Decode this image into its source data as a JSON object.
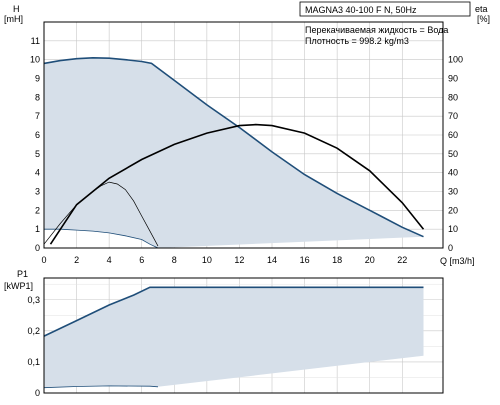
{
  "chart_data": [
    {
      "type": "line",
      "title": "MAGNA3 40-100 F N, 50Hz",
      "annotations": [
        "Перекачиваемая жидкость = Вода",
        "Плотность = 998.2 kg/m3"
      ],
      "ylabel": [
        "H",
        "[mH]"
      ],
      "y2label": [
        "eta",
        "[%]"
      ],
      "xlabel": "Q [m3/h]",
      "xlim": [
        0,
        24.5
      ],
      "ylim": [
        0,
        12
      ],
      "y2lim": [
        0,
        120
      ],
      "xticks": [
        0,
        2,
        4,
        6,
        8,
        10,
        12,
        14,
        16,
        18,
        20,
        22
      ],
      "xtick_labels": [
        "0",
        "2",
        "4",
        "6",
        "8",
        "10",
        "12",
        "14",
        "16",
        "18",
        "20",
        "22"
      ],
      "yticks": [
        0,
        1,
        2,
        3,
        4,
        5,
        6,
        7,
        8,
        9,
        10,
        11
      ],
      "ytick_labels": [
        "0",
        "1",
        "2",
        "3",
        "4",
        "5",
        "6",
        "7",
        "8",
        "9",
        "10",
        "11"
      ],
      "y2ticks": [
        0,
        10,
        20,
        30,
        40,
        50,
        60,
        70,
        80,
        90,
        100
      ],
      "y2tick_labels": [
        "0",
        "10",
        "20",
        "30",
        "40",
        "50",
        "60",
        "70",
        "80",
        "90",
        "100"
      ],
      "grid": true,
      "colors": {
        "area": "#d6dfe9",
        "max_curve": "#1f4e79",
        "eta": "#000000"
      },
      "series": [
        {
          "role": "max-curve",
          "axis": "H",
          "x": [
            0,
            1,
            2,
            3,
            4,
            5,
            6,
            6.6,
            8,
            10,
            12,
            14,
            16,
            18,
            20,
            22,
            23.3
          ],
          "y": [
            9.8,
            9.95,
            10.05,
            10.1,
            10.08,
            10.0,
            9.9,
            9.8,
            8.9,
            7.6,
            6.4,
            5.1,
            3.9,
            2.9,
            2.0,
            1.1,
            0.6
          ]
        },
        {
          "role": "min-curve",
          "axis": "H",
          "x": [
            0,
            1,
            2,
            3,
            4,
            5,
            6,
            6.5,
            7.0
          ],
          "y": [
            1.0,
            1.0,
            0.95,
            0.9,
            0.8,
            0.65,
            0.45,
            0.2,
            0.0
          ]
        },
        {
          "role": "eta-max",
          "axis": "eta",
          "x": [
            0.4,
            2,
            4,
            6,
            8,
            10,
            12,
            13,
            14,
            16,
            18,
            20,
            22,
            23.3
          ],
          "y": [
            2,
            23,
            37,
            47,
            55,
            61,
            65,
            65.5,
            65,
            61,
            53,
            41,
            24,
            10
          ]
        },
        {
          "role": "eta-min",
          "axis": "eta",
          "x": [
            0,
            1,
            2,
            3,
            3.5,
            4,
            4.5,
            5,
            5.5,
            6,
            6.5,
            7.0
          ],
          "y": [
            2,
            13,
            23,
            30,
            33,
            35,
            34,
            31,
            25,
            17,
            9,
            1
          ]
        }
      ]
    },
    {
      "type": "line",
      "ylabel": [
        "P1",
        "[kWP1]"
      ],
      "xlim": [
        0,
        24.5
      ],
      "ylim": [
        0,
        0.37
      ],
      "yticks": [
        0,
        0.1,
        0.2,
        0.3
      ],
      "ytick_labels": [
        "0",
        "0,1",
        "0,2",
        "0,3"
      ],
      "xticks": [
        0,
        2,
        4,
        6,
        8,
        10,
        12,
        14,
        16,
        18,
        20,
        22
      ],
      "grid": true,
      "series": [
        {
          "role": "p1-max",
          "x": [
            0,
            2,
            4,
            5.5,
            6.5,
            8,
            23.3
          ],
          "y": [
            0.183,
            0.233,
            0.283,
            0.315,
            0.34,
            0.34,
            0.34
          ]
        },
        {
          "role": "p1-min",
          "x": [
            0,
            2,
            4,
            6.5,
            7.0
          ],
          "y": [
            0.017,
            0.021,
            0.023,
            0.022,
            0.02
          ]
        }
      ]
    }
  ]
}
